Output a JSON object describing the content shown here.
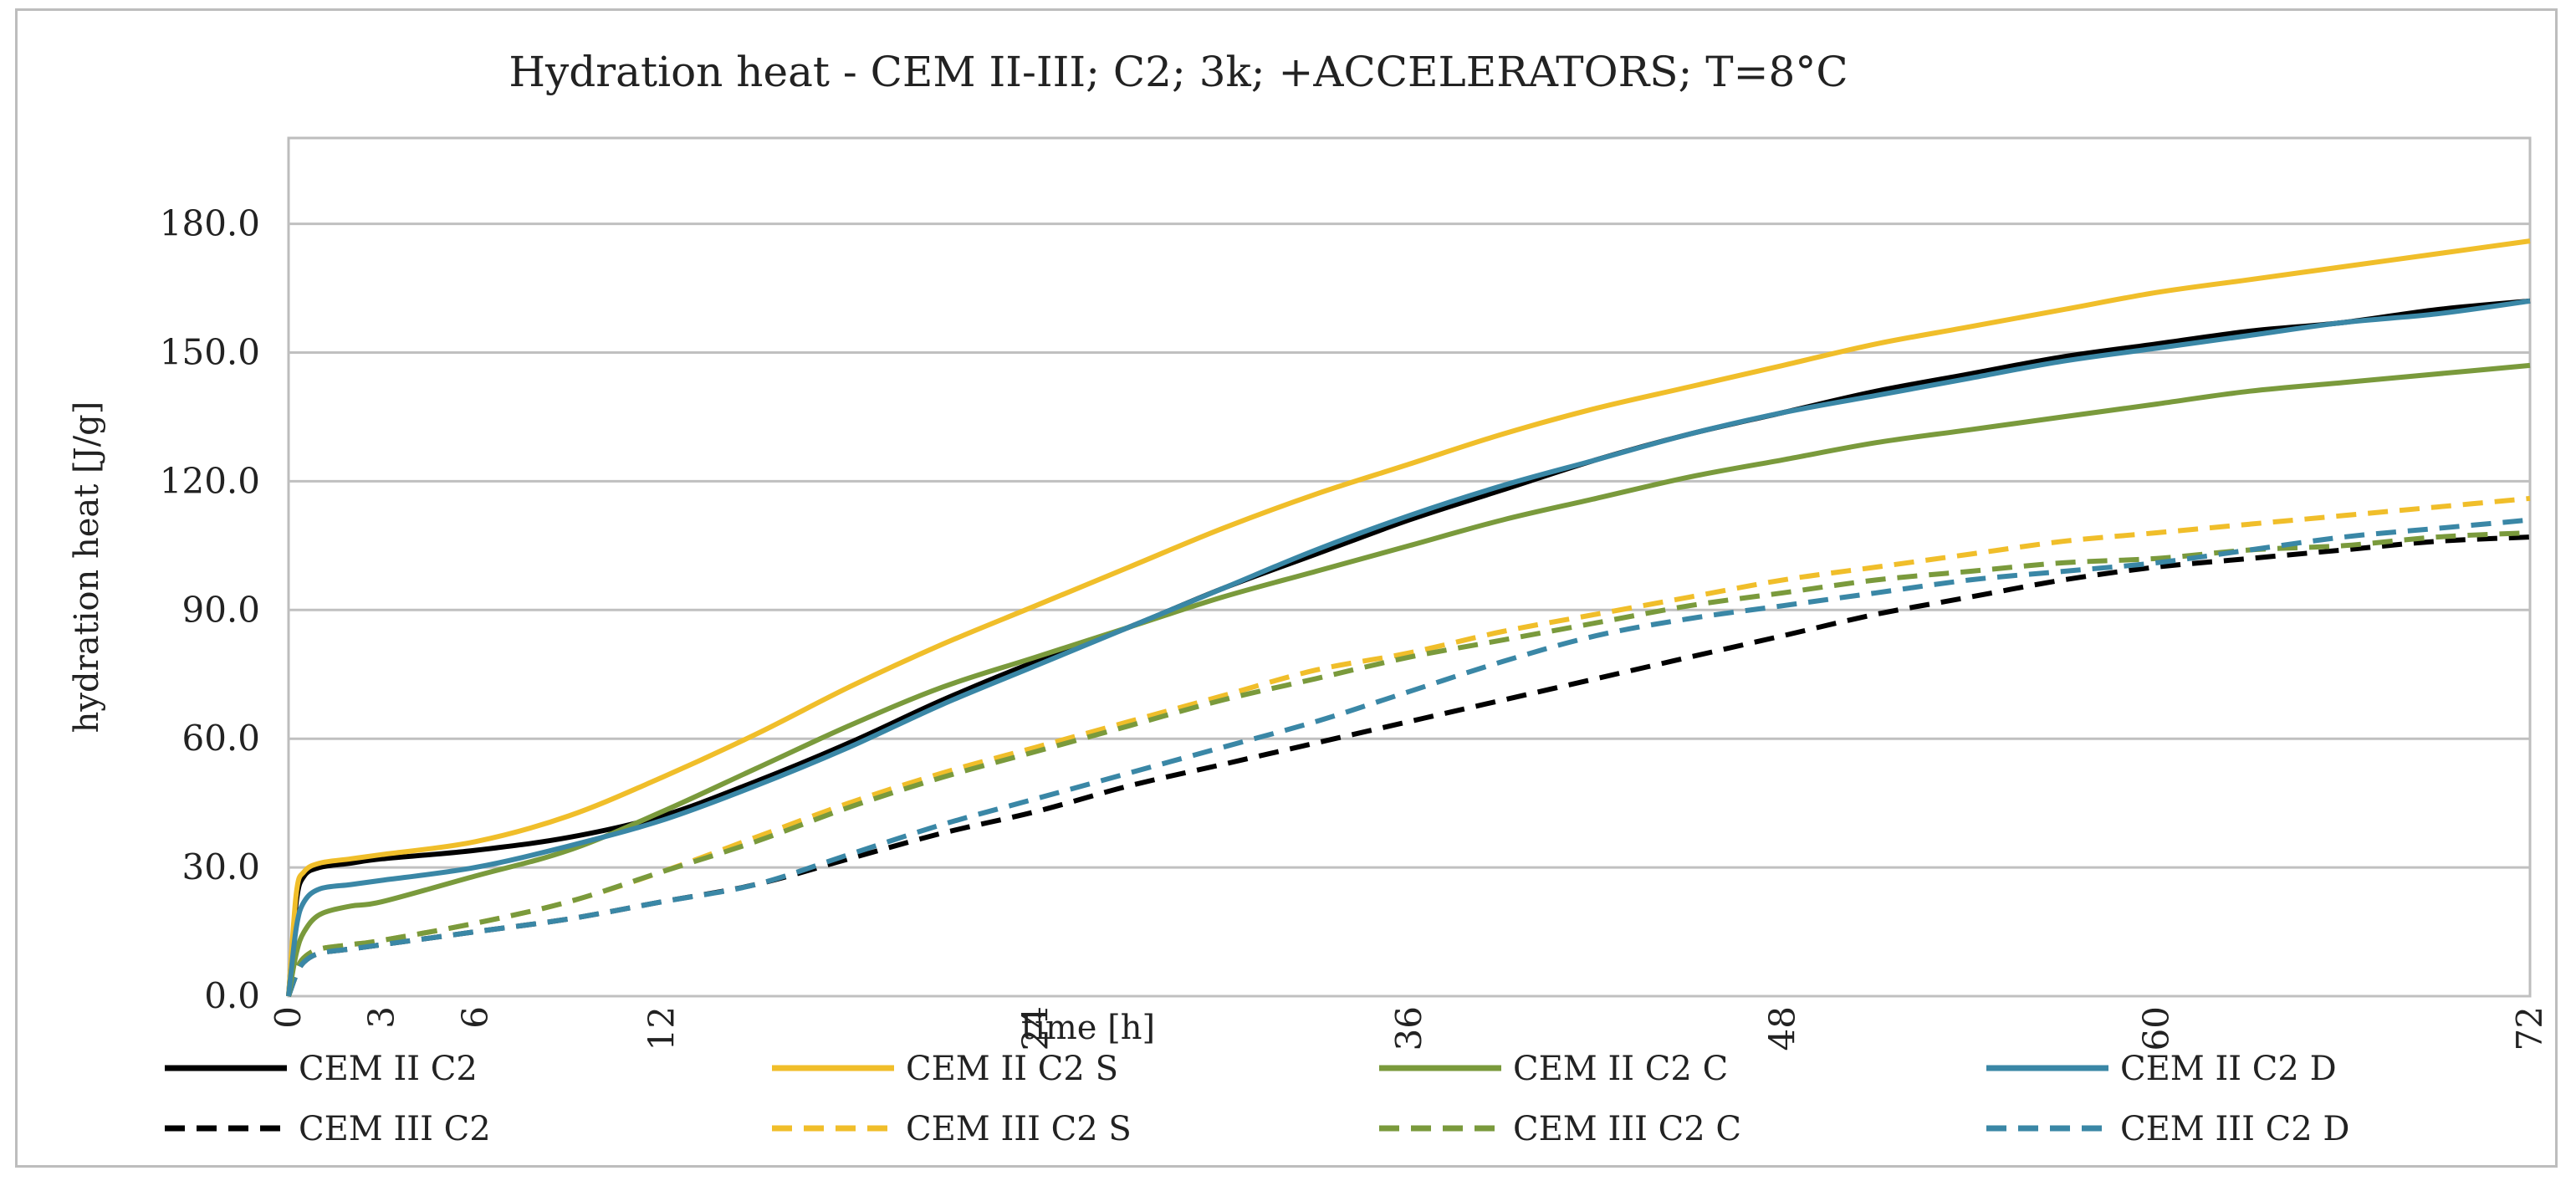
{
  "chart_data": {
    "type": "line",
    "title": "Hydration heat - CEM II-III; C2; 3k; +ACCELERATORS; T=8°C",
    "xlabel": "time [h]",
    "ylabel": "hydration heat [J/g]",
    "xlim": [
      0,
      72
    ],
    "ylim": [
      0,
      200
    ],
    "x_ticks": [
      "0",
      "3",
      "6",
      "12",
      "24",
      "36",
      "48",
      "60",
      "72"
    ],
    "y_ticks": [
      "0.0",
      "30.0",
      "60.0",
      "90.0",
      "120.0",
      "150.0",
      "180.0"
    ],
    "grid": "horizontal",
    "legend": "bottom",
    "x": [
      0,
      0.25,
      0.5,
      1,
      2,
      3,
      6,
      9,
      12,
      15,
      18,
      21,
      24,
      27,
      30,
      33,
      36,
      39,
      42,
      45,
      48,
      51,
      54,
      57,
      60,
      63,
      66,
      69,
      72
    ],
    "series": [
      {
        "name": "CEM II C2",
        "color": "#000000",
        "dash": "solid",
        "values": [
          0,
          22,
          28,
          30,
          31,
          32,
          34,
          37,
          42,
          50,
          59,
          69,
          78,
          86,
          95,
          103,
          111,
          118,
          125,
          131,
          136,
          141,
          145,
          149,
          152,
          155,
          157,
          160,
          162
        ]
      },
      {
        "name": "CEM II C2 S",
        "color": "#f0be2a",
        "dash": "solid",
        "values": [
          0,
          24,
          29,
          31,
          32,
          33,
          36,
          42,
          51,
          61,
          72,
          82,
          91,
          100,
          109,
          117,
          124,
          131,
          137,
          142,
          147,
          152,
          156,
          160,
          164,
          167,
          170,
          173,
          176
        ]
      },
      {
        "name": "CEM II C2 C",
        "color": "#7a9a3c",
        "dash": "solid",
        "values": [
          0,
          10,
          15,
          19,
          21,
          22,
          28,
          34,
          43,
          53,
          63,
          72,
          79,
          86,
          93,
          99,
          105,
          111,
          116,
          121,
          125,
          129,
          132,
          135,
          138,
          141,
          143,
          145,
          147
        ]
      },
      {
        "name": "CEM II C2 D",
        "color": "#3a87a6",
        "dash": "solid",
        "values": [
          0,
          16,
          22,
          25,
          26,
          27,
          30,
          35,
          41,
          49,
          58,
          68,
          77,
          86,
          95,
          104,
          112,
          119,
          125,
          131,
          136,
          140,
          144,
          148,
          151,
          154,
          157,
          159,
          162
        ]
      },
      {
        "name": "CEM III C2",
        "color": "#000000",
        "dash": "dashed",
        "values": [
          0,
          5,
          8,
          10,
          11,
          12,
          15,
          18,
          22,
          26,
          32,
          38,
          43,
          49,
          54,
          59,
          64,
          69,
          74,
          79,
          84,
          89,
          93,
          97,
          100,
          102,
          104,
          106,
          107
        ]
      },
      {
        "name": "CEM III C2 S",
        "color": "#f0be2a",
        "dash": "dashed",
        "values": [
          0,
          6,
          9,
          11,
          12,
          13,
          17,
          22,
          29,
          37,
          45,
          52,
          58,
          64,
          70,
          76,
          80,
          85,
          89,
          93,
          97,
          100,
          103,
          106,
          108,
          110,
          112,
          114,
          116
        ]
      },
      {
        "name": "CEM III C2 C",
        "color": "#7a9a3c",
        "dash": "dashed",
        "values": [
          0,
          6,
          9,
          11,
          12,
          13,
          17,
          22,
          29,
          36,
          44,
          51,
          57,
          63,
          69,
          74,
          79,
          83,
          87,
          91,
          94,
          97,
          99,
          101,
          102,
          104,
          105,
          107,
          108
        ]
      },
      {
        "name": "CEM III C2 D",
        "color": "#3a87a6",
        "dash": "dashed",
        "values": [
          0,
          5,
          8,
          10,
          11,
          12,
          15,
          18,
          22,
          26,
          33,
          40,
          46,
          52,
          58,
          64,
          71,
          78,
          84,
          88,
          91,
          94,
          97,
          99,
          101,
          104,
          107,
          109,
          111
        ]
      }
    ]
  }
}
